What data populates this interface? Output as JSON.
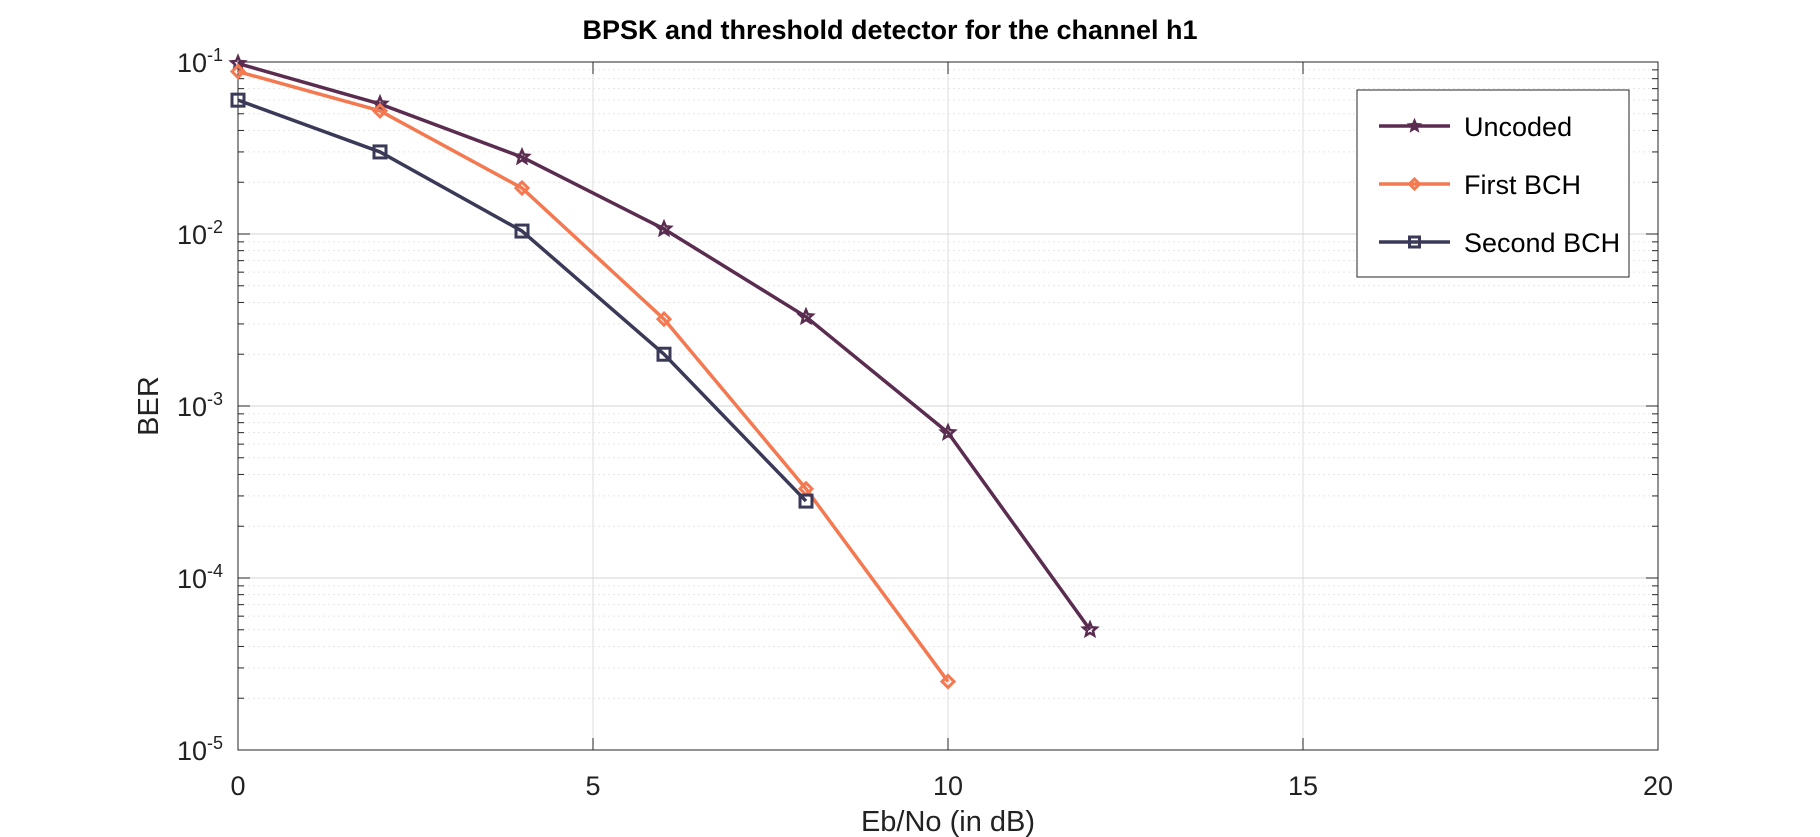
{
  "chart_data": {
    "type": "line",
    "title": "BPSK and threshold detector for the channel h1",
    "xlabel": "Eb/No (in dB)",
    "ylabel": "BER",
    "xlim": [
      0,
      20
    ],
    "ylim": [
      1e-05,
      0.1
    ],
    "yscale": "log",
    "grid": true,
    "legend_position": "top-right",
    "x_ticks": [
      "0",
      "5",
      "10",
      "15",
      "20"
    ],
    "y_ticks": [
      {
        "base": "10",
        "exp": "-5"
      },
      {
        "base": "10",
        "exp": "-4"
      },
      {
        "base": "10",
        "exp": "-3"
      },
      {
        "base": "10",
        "exp": "-2"
      },
      {
        "base": "10",
        "exp": "-1"
      }
    ],
    "series": [
      {
        "name": "Uncoded",
        "color": "#5a2d50",
        "marker": "star",
        "x": [
          0,
          2,
          4,
          6,
          8,
          10,
          12
        ],
        "y": [
          0.098,
          0.057,
          0.028,
          0.0107,
          0.0033,
          0.0007,
          5e-05
        ]
      },
      {
        "name": "First BCH",
        "color": "#f47850",
        "marker": "diamond",
        "x": [
          0,
          2,
          4,
          6,
          8,
          10
        ],
        "y": [
          0.088,
          0.052,
          0.0185,
          0.0032,
          0.00033,
          2.5e-05
        ]
      },
      {
        "name": "Second BCH",
        "color": "#3a3a58",
        "marker": "square",
        "x": [
          0,
          2,
          4,
          6,
          8
        ],
        "y": [
          0.06,
          0.03,
          0.0104,
          0.002,
          0.00028
        ]
      }
    ]
  }
}
